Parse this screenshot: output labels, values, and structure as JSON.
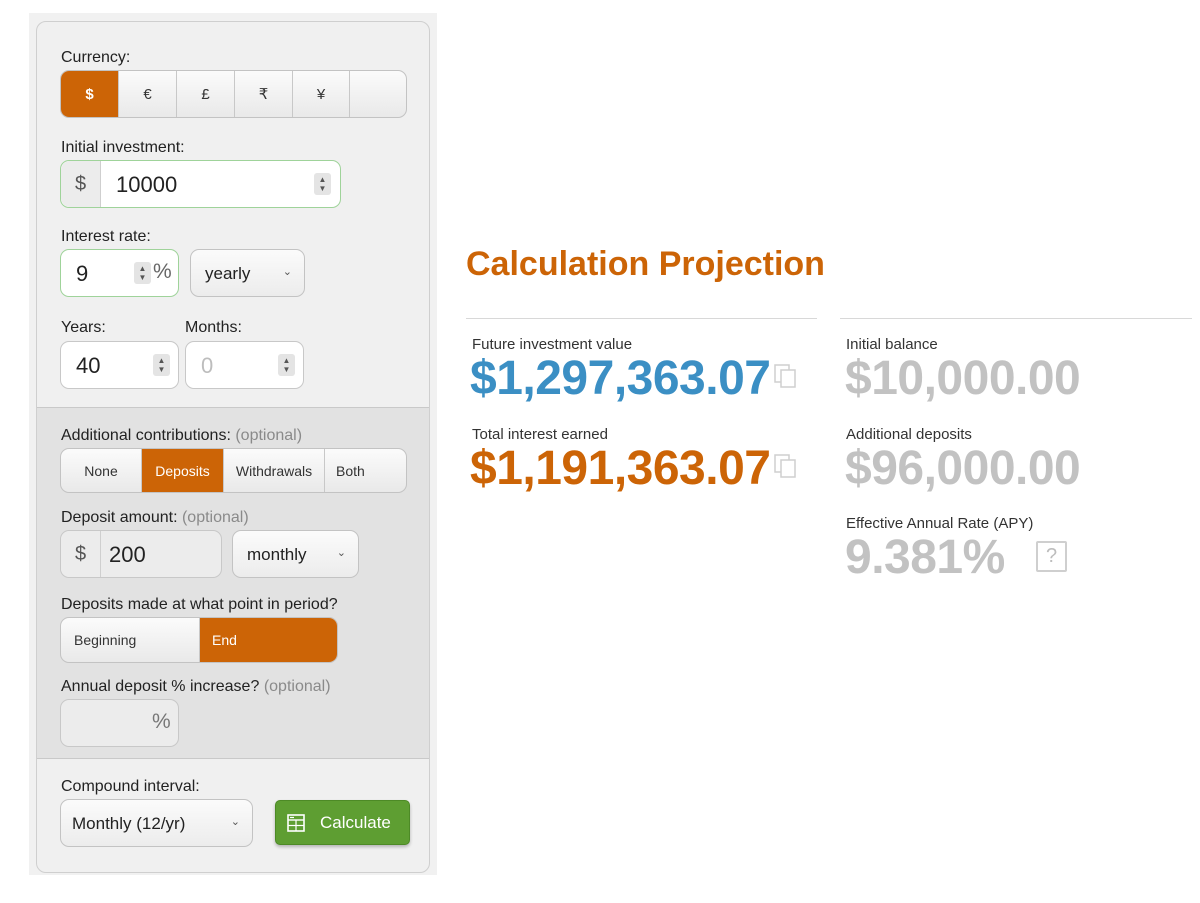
{
  "form": {
    "currency": {
      "label": "Currency:",
      "options": [
        "$",
        "€",
        "£",
        "₹",
        "¥",
        ""
      ],
      "selected": "$"
    },
    "initial_investment": {
      "label": "Initial investment:",
      "prefix": "$",
      "value": "10000"
    },
    "interest_rate": {
      "label": "Interest rate:",
      "value": "9",
      "suffix": "%",
      "period": "yearly"
    },
    "years": {
      "label": "Years:",
      "value": "40"
    },
    "months": {
      "label": "Months:",
      "value": "0"
    },
    "contributions": {
      "label": "Additional contributions:",
      "optional": "(optional)",
      "options": [
        "None",
        "Deposits",
        "Withdrawals",
        "Both"
      ],
      "selected": "Deposits"
    },
    "deposit_amount": {
      "label": "Deposit amount:",
      "optional": "(optional)",
      "prefix": "$",
      "value": "200",
      "frequency": "monthly"
    },
    "deposit_timing": {
      "label": "Deposits made at what point in period?",
      "options": [
        "Beginning",
        "End"
      ],
      "selected": "End"
    },
    "annual_increase": {
      "label": "Annual deposit % increase?",
      "optional": "(optional)",
      "suffix": "%",
      "value": ""
    },
    "compound_interval": {
      "label": "Compound interval:",
      "value": "Monthly (12/yr)"
    },
    "calculate_label": "Calculate"
  },
  "results": {
    "title": "Calculation Projection",
    "future_value": {
      "label": "Future investment value",
      "value": "$1,297,363.07"
    },
    "total_interest": {
      "label": "Total interest earned",
      "value": "$1,191,363.07"
    },
    "initial_balance": {
      "label": "Initial balance",
      "value": "$10,000.00"
    },
    "additional_deposits": {
      "label": "Additional deposits",
      "value": "$96,000.00"
    },
    "apy": {
      "label": "Effective Annual Rate (APY)",
      "value": "9.381%",
      "help": "?"
    }
  },
  "colors": {
    "accent": "#cc6406",
    "blue": "#3b8fc4",
    "muted": "#c2c2c2",
    "button": "#5e9e32"
  }
}
